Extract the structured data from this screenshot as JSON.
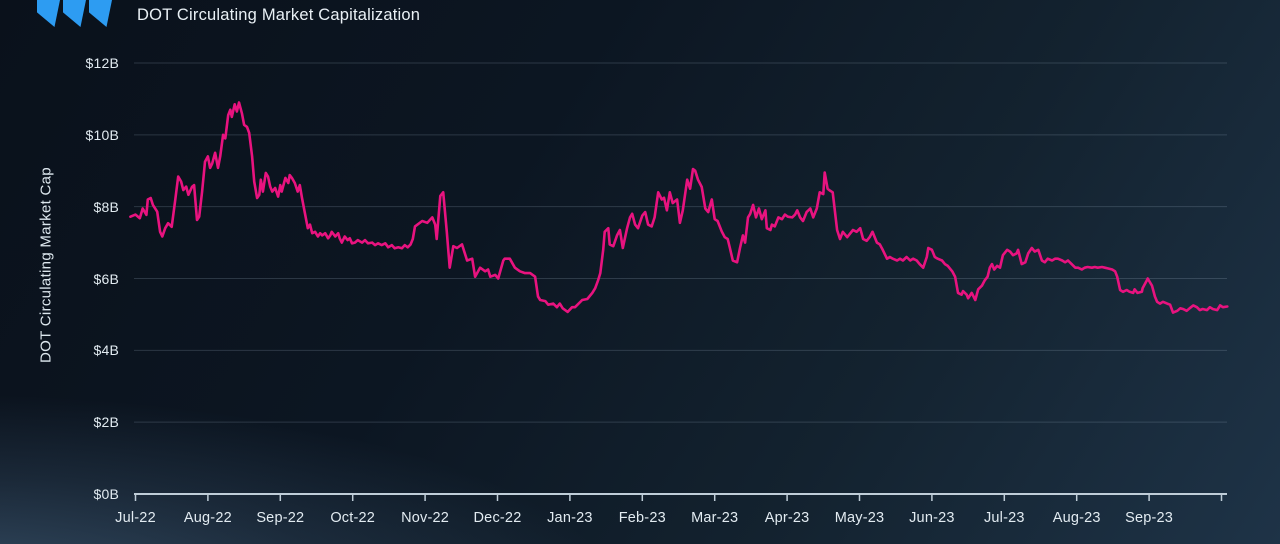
{
  "header": {
    "title": "DOT Circulating Market Capitalization",
    "logo_color": "#2d9cf2"
  },
  "chart_data": {
    "type": "line",
    "title": "DOT Circulating Market Capitalization",
    "xlabel": "",
    "ylabel": "DOT Circulating Market Cap",
    "series_name": "DOT Circulating Market Cap",
    "line_color": "#e8137f",
    "axis_color": "#bfcdd8",
    "grid_color": "rgba(173,196,214,0.20)",
    "grid": "horizontal",
    "legend": "none",
    "ylim": [
      0,
      12
    ],
    "y_tick_values": [
      0,
      2,
      4,
      6,
      8,
      10,
      12
    ],
    "y_tick_labels": [
      "$0B",
      "$2B",
      "$4B",
      "$6B",
      "$8B",
      "$10B",
      "$12B"
    ],
    "x_tick_labels": [
      "Jul-22",
      "Aug-22",
      "Sep-22",
      "Oct-22",
      "Nov-22",
      "Dec-22",
      "Jan-23",
      "Feb-23",
      "Mar-23",
      "Apr-23",
      "May-23",
      "Jun-23",
      "Jul-23",
      "Aug-23",
      "Sep-23"
    ],
    "x_unit": "months since Jul-2022 (0 = Jul-22 tick); values in billions USD",
    "points": [
      [
        -0.07,
        7.72
      ],
      [
        0,
        7.78
      ],
      [
        0.06,
        7.68
      ],
      [
        0.1,
        7.95
      ],
      [
        0.15,
        7.77
      ],
      [
        0.17,
        8.2
      ],
      [
        0.21,
        8.24
      ],
      [
        0.24,
        8.05
      ],
      [
        0.3,
        7.86
      ],
      [
        0.34,
        7.3
      ],
      [
        0.37,
        7.17
      ],
      [
        0.41,
        7.4
      ],
      [
        0.45,
        7.54
      ],
      [
        0.5,
        7.44
      ],
      [
        0.55,
        8.2
      ],
      [
        0.59,
        8.84
      ],
      [
        0.63,
        8.7
      ],
      [
        0.66,
        8.46
      ],
      [
        0.7,
        8.56
      ],
      [
        0.73,
        8.33
      ],
      [
        0.78,
        8.55
      ],
      [
        0.81,
        8.6
      ],
      [
        0.85,
        7.63
      ],
      [
        0.88,
        7.72
      ],
      [
        0.92,
        8.42
      ],
      [
        0.96,
        9.25
      ],
      [
        1,
        9.4
      ],
      [
        1.03,
        9.08
      ],
      [
        1.06,
        9.2
      ],
      [
        1.1,
        9.5
      ],
      [
        1.14,
        9.08
      ],
      [
        1.17,
        9.4
      ],
      [
        1.21,
        10
      ],
      [
        1.24,
        9.9
      ],
      [
        1.28,
        10.55
      ],
      [
        1.31,
        10.7
      ],
      [
        1.33,
        10.5
      ],
      [
        1.37,
        10.85
      ],
      [
        1.4,
        10.65
      ],
      [
        1.43,
        10.9
      ],
      [
        1.47,
        10.6
      ],
      [
        1.5,
        10.28
      ],
      [
        1.54,
        10.22
      ],
      [
        1.57,
        10.05
      ],
      [
        1.61,
        9.4
      ],
      [
        1.64,
        8.7
      ],
      [
        1.68,
        8.24
      ],
      [
        1.71,
        8.33
      ],
      [
        1.73,
        8.75
      ],
      [
        1.76,
        8.42
      ],
      [
        1.8,
        8.94
      ],
      [
        1.83,
        8.84
      ],
      [
        1.86,
        8.56
      ],
      [
        1.89,
        8.42
      ],
      [
        1.93,
        8.52
      ],
      [
        1.97,
        8.28
      ],
      [
        2,
        8.6
      ],
      [
        2.02,
        8.42
      ],
      [
        2.07,
        8.8
      ],
      [
        2.11,
        8.66
      ],
      [
        2.13,
        8.88
      ],
      [
        2.16,
        8.8
      ],
      [
        2.2,
        8.66
      ],
      [
        2.24,
        8.42
      ],
      [
        2.27,
        8.6
      ],
      [
        2.3,
        8.24
      ],
      [
        2.34,
        7.82
      ],
      [
        2.38,
        7.4
      ],
      [
        2.41,
        7.5
      ],
      [
        2.44,
        7.26
      ],
      [
        2.48,
        7.3
      ],
      [
        2.52,
        7.17
      ],
      [
        2.55,
        7.26
      ],
      [
        2.58,
        7.2
      ],
      [
        2.62,
        7.26
      ],
      [
        2.66,
        7.12
      ],
      [
        2.69,
        7.2
      ],
      [
        2.71,
        7.3
      ],
      [
        2.76,
        7.17
      ],
      [
        2.8,
        7.26
      ],
      [
        2.82,
        7.12
      ],
      [
        2.85,
        7
      ],
      [
        2.89,
        7.17
      ],
      [
        2.93,
        7.07
      ],
      [
        2.96,
        7.12
      ],
      [
        2.99,
        6.98
      ],
      [
        3.03,
        7
      ],
      [
        3.07,
        7.07
      ],
      [
        3.13,
        7
      ],
      [
        3.17,
        7.07
      ],
      [
        3.21,
        6.98
      ],
      [
        3.27,
        7
      ],
      [
        3.31,
        6.93
      ],
      [
        3.35,
        6.98
      ],
      [
        3.4,
        6.93
      ],
      [
        3.45,
        6.98
      ],
      [
        3.49,
        6.87
      ],
      [
        3.54,
        6.93
      ],
      [
        3.58,
        6.84
      ],
      [
        3.63,
        6.87
      ],
      [
        3.68,
        6.84
      ],
      [
        3.72,
        6.93
      ],
      [
        3.76,
        6.87
      ],
      [
        3.8,
        6.95
      ],
      [
        3.83,
        7.1
      ],
      [
        3.86,
        7.45
      ],
      [
        3.96,
        7.6
      ],
      [
        4.03,
        7.55
      ],
      [
        4.1,
        7.7
      ],
      [
        4.14,
        7.5
      ],
      [
        4.16,
        7.1
      ],
      [
        4.21,
        8.3
      ],
      [
        4.25,
        8.4
      ],
      [
        4.3,
        7.3
      ],
      [
        4.34,
        6.3
      ],
      [
        4.39,
        6.9
      ],
      [
        4.44,
        6.85
      ],
      [
        4.51,
        6.95
      ],
      [
        4.58,
        6.5
      ],
      [
        4.65,
        6.55
      ],
      [
        4.69,
        6.05
      ],
      [
        4.76,
        6.3
      ],
      [
        4.83,
        6.2
      ],
      [
        4.87,
        6.25
      ],
      [
        4.9,
        6.05
      ],
      [
        4.97,
        6.1
      ],
      [
        5.01,
        6
      ],
      [
        5.08,
        6.5
      ],
      [
        5.1,
        6.55
      ],
      [
        5.17,
        6.55
      ],
      [
        5.24,
        6.3
      ],
      [
        5.31,
        6.2
      ],
      [
        5.38,
        6.15
      ],
      [
        5.45,
        6.15
      ],
      [
        5.52,
        6.05
      ],
      [
        5.56,
        5.5
      ],
      [
        5.59,
        5.4
      ],
      [
        5.66,
        5.37
      ],
      [
        5.7,
        5.27
      ],
      [
        5.77,
        5.3
      ],
      [
        5.82,
        5.2
      ],
      [
        5.86,
        5.3
      ],
      [
        5.9,
        5.17
      ],
      [
        5.97,
        5.07
      ],
      [
        6.03,
        5.2
      ],
      [
        6.07,
        5.2
      ],
      [
        6.17,
        5.4
      ],
      [
        6.24,
        5.43
      ],
      [
        6.31,
        5.6
      ],
      [
        6.35,
        5.73
      ],
      [
        6.39,
        5.95
      ],
      [
        6.42,
        6.15
      ],
      [
        6.46,
        6.8
      ],
      [
        6.48,
        7.3
      ],
      [
        6.53,
        7.4
      ],
      [
        6.55,
        6.95
      ],
      [
        6.6,
        6.9
      ],
      [
        6.65,
        7.2
      ],
      [
        6.69,
        7.35
      ],
      [
        6.73,
        6.85
      ],
      [
        6.79,
        7.4
      ],
      [
        6.83,
        7.7
      ],
      [
        6.86,
        7.8
      ],
      [
        6.9,
        7.5
      ],
      [
        6.94,
        7.4
      ],
      [
        7,
        7.75
      ],
      [
        7.04,
        7.85
      ],
      [
        7.08,
        7.5
      ],
      [
        7.13,
        7.45
      ],
      [
        7.17,
        7.7
      ],
      [
        7.22,
        8.4
      ],
      [
        7.27,
        8.2
      ],
      [
        7.3,
        8.25
      ],
      [
        7.34,
        7.9
      ],
      [
        7.38,
        8.4
      ],
      [
        7.42,
        8.1
      ],
      [
        7.48,
        8.2
      ],
      [
        7.52,
        7.55
      ],
      [
        7.56,
        7.9
      ],
      [
        7.62,
        8.75
      ],
      [
        7.66,
        8.5
      ],
      [
        7.7,
        9.05
      ],
      [
        7.73,
        9
      ],
      [
        7.77,
        8.75
      ],
      [
        7.82,
        8.55
      ],
      [
        7.87,
        7.95
      ],
      [
        7.91,
        7.85
      ],
      [
        7.96,
        8.2
      ],
      [
        8,
        7.65
      ],
      [
        8.04,
        7.6
      ],
      [
        8.1,
        7.3
      ],
      [
        8.14,
        7.15
      ],
      [
        8.18,
        7.1
      ],
      [
        8.21,
        6.85
      ],
      [
        8.25,
        6.5
      ],
      [
        8.31,
        6.45
      ],
      [
        8.35,
        6.85
      ],
      [
        8.39,
        7.2
      ],
      [
        8.42,
        7
      ],
      [
        8.46,
        7.7
      ],
      [
        8.49,
        7.8
      ],
      [
        8.53,
        8.05
      ],
      [
        8.57,
        7.7
      ],
      [
        8.61,
        7.95
      ],
      [
        8.65,
        7.65
      ],
      [
        8.7,
        7.9
      ],
      [
        8.72,
        7.4
      ],
      [
        8.77,
        7.35
      ],
      [
        8.79,
        7.5
      ],
      [
        8.83,
        7.45
      ],
      [
        8.88,
        7.7
      ],
      [
        8.93,
        7.65
      ],
      [
        8.97,
        7.78
      ],
      [
        9.01,
        7.72
      ],
      [
        9.07,
        7.7
      ],
      [
        9.11,
        7.78
      ],
      [
        9.14,
        7.9
      ],
      [
        9.18,
        7.7
      ],
      [
        9.22,
        7.6
      ],
      [
        9.27,
        7.85
      ],
      [
        9.32,
        7.95
      ],
      [
        9.36,
        7.7
      ],
      [
        9.41,
        7.95
      ],
      [
        9.45,
        8.4
      ],
      [
        9.5,
        8.35
      ],
      [
        9.52,
        8.95
      ],
      [
        9.56,
        8.5
      ],
      [
        9.59,
        8.45
      ],
      [
        9.63,
        8.4
      ],
      [
        9.69,
        7.35
      ],
      [
        9.73,
        7.1
      ],
      [
        9.77,
        7.3
      ],
      [
        9.83,
        7.15
      ],
      [
        9.87,
        7.25
      ],
      [
        9.91,
        7.35
      ],
      [
        9.96,
        7.3
      ],
      [
        10.01,
        7.4
      ],
      [
        10.05,
        7.1
      ],
      [
        10.1,
        7.05
      ],
      [
        10.14,
        7.15
      ],
      [
        10.18,
        7.3
      ],
      [
        10.24,
        7
      ],
      [
        10.28,
        6.95
      ],
      [
        10.32,
        6.8
      ],
      [
        10.38,
        6.55
      ],
      [
        10.42,
        6.6
      ],
      [
        10.46,
        6.55
      ],
      [
        10.52,
        6.5
      ],
      [
        10.56,
        6.55
      ],
      [
        10.6,
        6.5
      ],
      [
        10.65,
        6.6
      ],
      [
        10.7,
        6.5
      ],
      [
        10.74,
        6.55
      ],
      [
        10.79,
        6.5
      ],
      [
        10.83,
        6.4
      ],
      [
        10.88,
        6.3
      ],
      [
        10.93,
        6.6
      ],
      [
        10.95,
        6.85
      ],
      [
        11,
        6.8
      ],
      [
        11.04,
        6.6
      ],
      [
        11.08,
        6.55
      ],
      [
        11.14,
        6.5
      ],
      [
        11.18,
        6.4
      ],
      [
        11.22,
        6.35
      ],
      [
        11.28,
        6.2
      ],
      [
        11.32,
        6.05
      ],
      [
        11.36,
        5.6
      ],
      [
        11.41,
        5.55
      ],
      [
        11.43,
        5.65
      ],
      [
        11.48,
        5.55
      ],
      [
        11.5,
        5.45
      ],
      [
        11.55,
        5.6
      ],
      [
        11.6,
        5.4
      ],
      [
        11.64,
        5.7
      ],
      [
        11.69,
        5.8
      ],
      [
        11.73,
        5.95
      ],
      [
        11.77,
        6.05
      ],
      [
        11.8,
        6.3
      ],
      [
        11.83,
        6.4
      ],
      [
        11.86,
        6.25
      ],
      [
        11.9,
        6.35
      ],
      [
        11.94,
        6.3
      ],
      [
        11.98,
        6.65
      ],
      [
        12.04,
        6.8
      ],
      [
        12.08,
        6.75
      ],
      [
        12.12,
        6.65
      ],
      [
        12.17,
        6.7
      ],
      [
        12.19,
        6.8
      ],
      [
        12.24,
        6.4
      ],
      [
        12.29,
        6.45
      ],
      [
        12.33,
        6.7
      ],
      [
        12.38,
        6.85
      ],
      [
        12.42,
        6.75
      ],
      [
        12.47,
        6.8
      ],
      [
        12.52,
        6.5
      ],
      [
        12.56,
        6.45
      ],
      [
        12.6,
        6.55
      ],
      [
        12.66,
        6.5
      ],
      [
        12.7,
        6.55
      ],
      [
        12.74,
        6.55
      ],
      [
        12.8,
        6.5
      ],
      [
        12.84,
        6.45
      ],
      [
        12.88,
        6.5
      ],
      [
        12.93,
        6.4
      ],
      [
        12.98,
        6.3
      ],
      [
        13.02,
        6.3
      ],
      [
        13.07,
        6.25
      ],
      [
        13.11,
        6.3
      ],
      [
        13.15,
        6.32
      ],
      [
        13.21,
        6.3
      ],
      [
        13.25,
        6.32
      ],
      [
        13.29,
        6.3
      ],
      [
        13.35,
        6.32
      ],
      [
        13.39,
        6.3
      ],
      [
        13.43,
        6.28
      ],
      [
        13.49,
        6.25
      ],
      [
        13.53,
        6.2
      ],
      [
        13.56,
        6.05
      ],
      [
        13.6,
        5.68
      ],
      [
        13.64,
        5.63
      ],
      [
        13.69,
        5.68
      ],
      [
        13.73,
        5.63
      ],
      [
        13.78,
        5.6
      ],
      [
        13.8,
        5.7
      ],
      [
        13.84,
        5.6
      ],
      [
        13.9,
        5.63
      ],
      [
        13.91,
        5.73
      ],
      [
        13.97,
        5.95
      ],
      [
        13.98,
        6
      ],
      [
        14.04,
        5.8
      ],
      [
        14.08,
        5.5
      ],
      [
        14.11,
        5.35
      ],
      [
        14.15,
        5.3
      ],
      [
        14.19,
        5.35
      ],
      [
        14.25,
        5.3
      ],
      [
        14.29,
        5.27
      ],
      [
        14.33,
        5.05
      ],
      [
        14.39,
        5.1
      ],
      [
        14.43,
        5.17
      ],
      [
        14.47,
        5.15
      ],
      [
        14.52,
        5.1
      ],
      [
        14.56,
        5.17
      ],
      [
        14.61,
        5.25
      ],
      [
        14.66,
        5.2
      ],
      [
        14.7,
        5.12
      ],
      [
        14.74,
        5.15
      ],
      [
        14.8,
        5.12
      ],
      [
        14.84,
        5.2
      ],
      [
        14.88,
        5.15
      ],
      [
        14.94,
        5.12
      ],
      [
        14.98,
        5.25
      ],
      [
        15.02,
        5.2
      ],
      [
        15.08,
        5.22
      ]
    ]
  }
}
